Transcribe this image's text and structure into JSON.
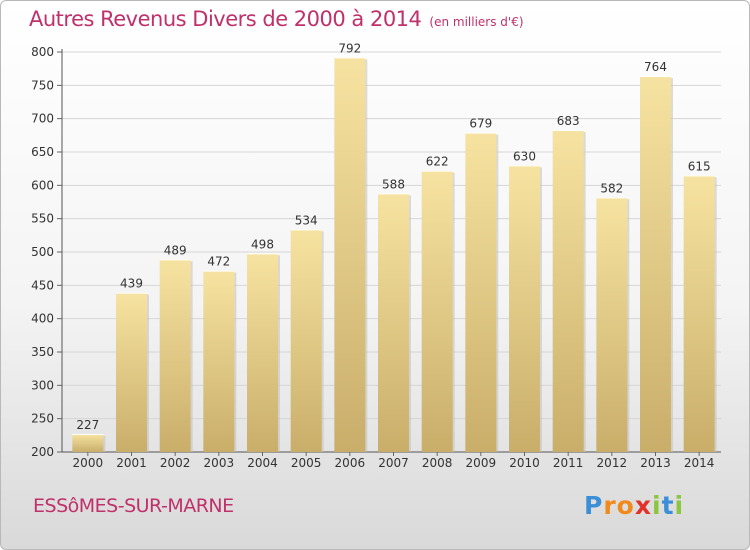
{
  "chart_data": {
    "type": "bar",
    "title": "Autres Revenus Divers de 2000 à 2014",
    "subtitle": "(en milliers d'€)",
    "categories": [
      "2000",
      "2001",
      "2002",
      "2003",
      "2004",
      "2005",
      "2006",
      "2007",
      "2008",
      "2009",
      "2010",
      "2011",
      "2012",
      "2013",
      "2014"
    ],
    "values": [
      227,
      439,
      489,
      472,
      498,
      534,
      792,
      588,
      622,
      679,
      630,
      683,
      582,
      764,
      615
    ],
    "ylim": [
      200,
      800
    ],
    "yticks": [
      200,
      250,
      300,
      350,
      400,
      450,
      500,
      550,
      600,
      650,
      700,
      750,
      800
    ],
    "grid": true,
    "bar_color": "#e8cf88"
  },
  "location": "ESSôMES-SUR-MARNE",
  "logo": {
    "letters": [
      "P",
      "r",
      "o",
      "x",
      "i",
      "t",
      "i"
    ],
    "colors": [
      "#3b8fd9",
      "#f08a1c",
      "#f08a1c",
      "#e0332a",
      "#8cc63f",
      "#3b8fd9",
      "#8cc63f"
    ]
  }
}
